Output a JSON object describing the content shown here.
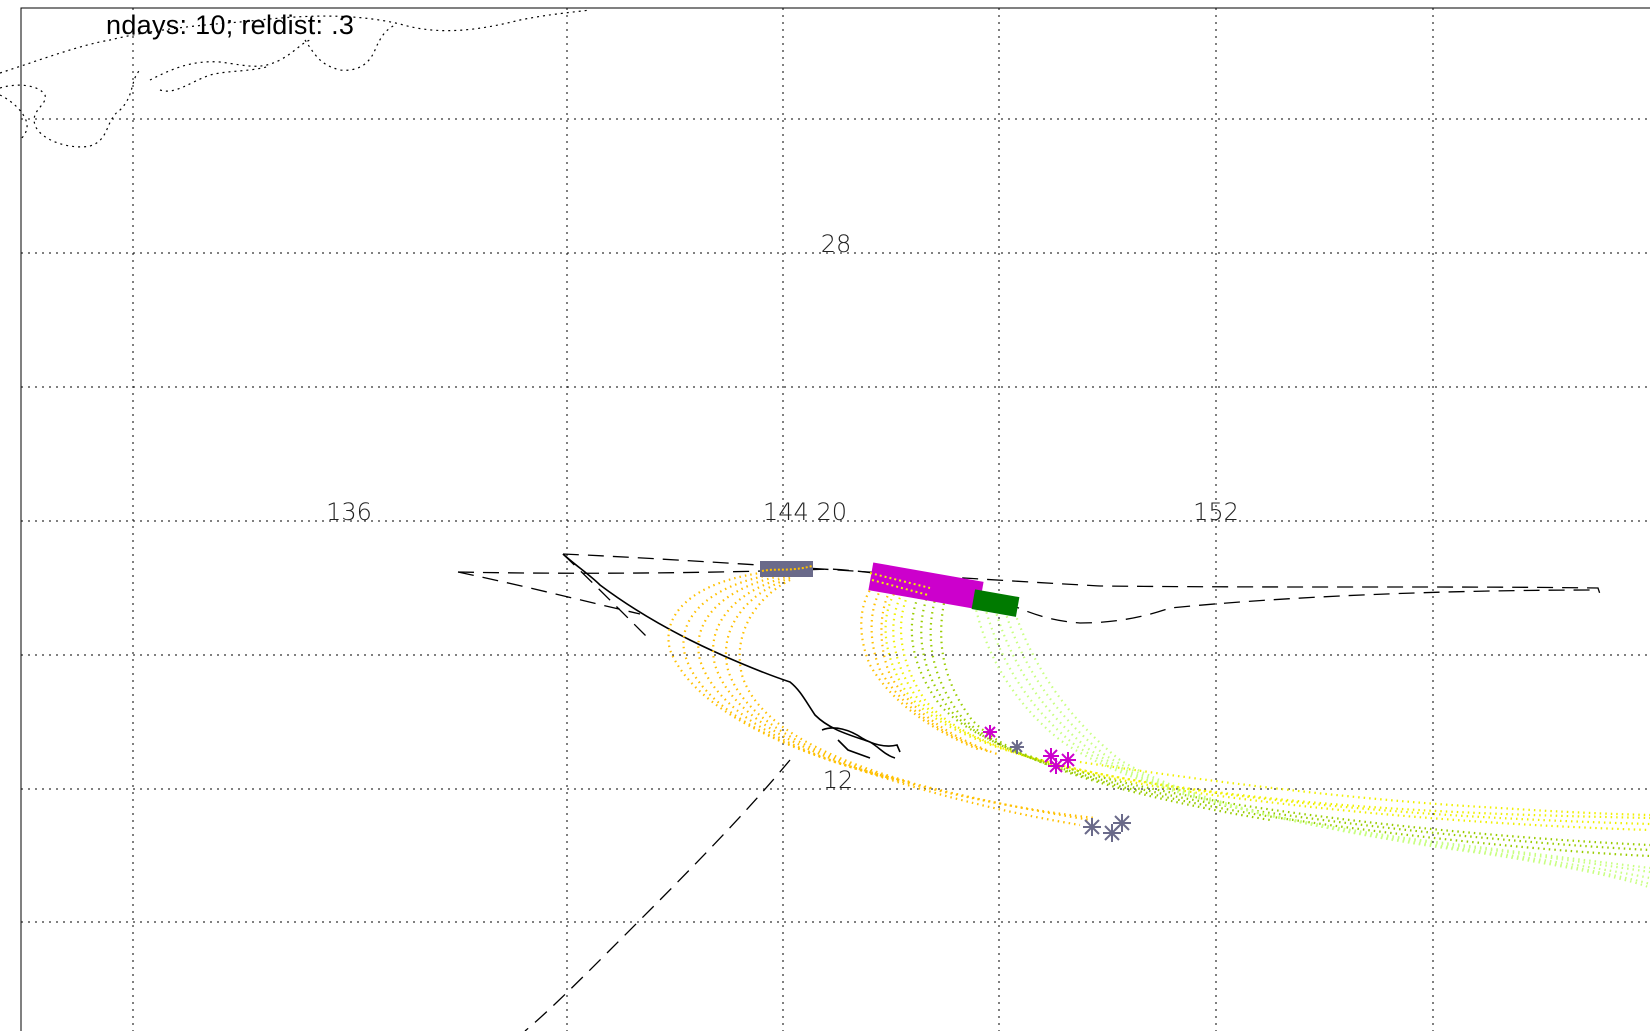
{
  "title": "ndays: 10; reldist: .3",
  "grid_labels": {
    "lon_136": "136",
    "lon_144_lat_20": "144 20",
    "lon_152": "152",
    "lat_28": "28",
    "lat_12": "12"
  },
  "colors": {
    "release_box": "#6a6a8a",
    "magenta": "#cc00cc",
    "dark_green": "#007a00",
    "orange": "#ffc000",
    "yellow": "#f0f000",
    "lime": "#c8ff80",
    "olive": "#99cc00",
    "coast": "#000000",
    "grid": "#000000"
  },
  "icons": {
    "endpoint_marker": "asterisk-icon"
  }
}
